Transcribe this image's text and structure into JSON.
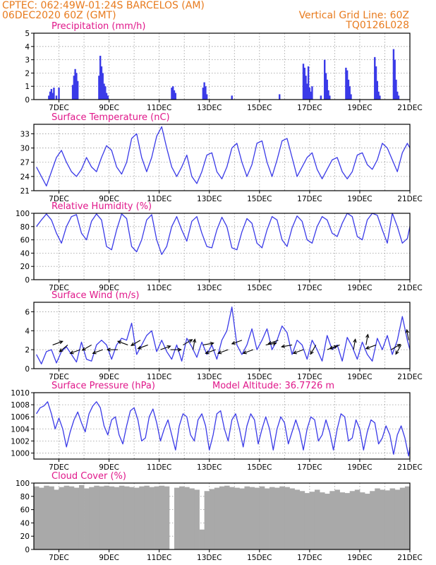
{
  "header": {
    "line1_left": "CPTEC:   062:49W-01:24S  BARCELOS (AM)",
    "line2_left": "06DEC2020 60Z (GMT)",
    "line2_right": "Vertical Grid Line: 60Z",
    "line3_right": "TQ0126L028"
  },
  "colors": {
    "header": "#e87b1e",
    "title": "#e0178a",
    "line": "#3a3ae8",
    "cloud": "#a9a9a9",
    "arrow": "#000000"
  },
  "chart_data": [
    {
      "type": "bar",
      "title": "Precipitation (mm/h)",
      "ylim": [
        0,
        5
      ],
      "yticks": [
        0,
        1,
        2,
        3,
        4,
        5
      ],
      "xticks": [
        "7DEC",
        "9DEC",
        "11DEC",
        "13DEC",
        "15DEC",
        "17DEC",
        "19DEC",
        "21DEC"
      ],
      "x_unit": "day of December 2020 (fractional)",
      "x": [
        6.6,
        6.65,
        6.7,
        6.75,
        6.8,
        6.9,
        7.0,
        7.55,
        7.6,
        7.65,
        7.7,
        7.75,
        8.6,
        8.65,
        8.7,
        8.75,
        8.8,
        8.85,
        8.9,
        8.95,
        11.5,
        11.55,
        11.6,
        11.65,
        12.75,
        12.8,
        12.85,
        12.9,
        13.9,
        15.8,
        16.75,
        16.8,
        16.85,
        16.9,
        16.95,
        17.0,
        17.05,
        17.1,
        17.45,
        17.6,
        17.65,
        17.7,
        17.75,
        17.8,
        18.45,
        18.5,
        18.55,
        18.6,
        18.65,
        19.6,
        19.65,
        19.7,
        19.75,
        19.8,
        20.35,
        20.4,
        20.45,
        20.5,
        20.55
      ],
      "values": [
        0.3,
        0.6,
        0.8,
        0.5,
        0.9,
        0.3,
        0.9,
        1.1,
        1.8,
        2.3,
        2.0,
        1.4,
        1.8,
        3.3,
        2.5,
        2.0,
        1.2,
        1.0,
        0.5,
        0.3,
        0.9,
        1.0,
        0.7,
        0.5,
        0.9,
        1.3,
        1.0,
        0.4,
        0.3,
        0.4,
        2.7,
        2.4,
        1.8,
        1.2,
        2.5,
        0.9,
        0.6,
        1.0,
        0.3,
        3.0,
        2.0,
        1.5,
        0.7,
        0.3,
        2.4,
        2.2,
        1.5,
        1.0,
        0.4,
        3.2,
        2.5,
        1.4,
        0.6,
        0.3,
        3.8,
        3.0,
        1.5,
        0.6,
        0.3
      ]
    },
    {
      "type": "line",
      "title": "Surface Temperature (nC)",
      "ylim": [
        21,
        35
      ],
      "yticks": [
        21,
        24,
        27,
        30,
        33
      ],
      "xticks": [
        "7DEC",
        "9DEC",
        "11DEC",
        "13DEC",
        "15DEC",
        "17DEC",
        "19DEC",
        "21DEC"
      ],
      "x": [
        6.1,
        6.3,
        6.5,
        6.7,
        6.9,
        7.1,
        7.3,
        7.5,
        7.7,
        7.9,
        8.1,
        8.3,
        8.5,
        8.7,
        8.9,
        9.1,
        9.3,
        9.5,
        9.7,
        9.9,
        10.1,
        10.3,
        10.5,
        10.7,
        10.9,
        11.1,
        11.3,
        11.5,
        11.7,
        11.9,
        12.1,
        12.3,
        12.5,
        12.7,
        12.9,
        13.1,
        13.3,
        13.5,
        13.7,
        13.9,
        14.1,
        14.3,
        14.5,
        14.7,
        14.9,
        15.1,
        15.3,
        15.5,
        15.7,
        15.9,
        16.1,
        16.3,
        16.5,
        16.7,
        16.9,
        17.1,
        17.3,
        17.5,
        17.7,
        17.9,
        18.1,
        18.3,
        18.5,
        18.7,
        18.9,
        19.1,
        19.3,
        19.5,
        19.7,
        19.9,
        20.1,
        20.3,
        20.5,
        20.7,
        20.9,
        21.0
      ],
      "values": [
        26.0,
        24.0,
        22.0,
        25.0,
        28.0,
        29.5,
        27.0,
        25.0,
        24.0,
        25.5,
        28.0,
        26.0,
        25.0,
        28.0,
        30.5,
        29.5,
        26.0,
        24.5,
        27.0,
        32.0,
        33.0,
        28.0,
        25.0,
        28.0,
        32.5,
        34.5,
        30.0,
        26.0,
        24.0,
        26.0,
        28.5,
        24.0,
        22.5,
        25.0,
        28.5,
        29.0,
        25.0,
        23.5,
        26.0,
        30.0,
        31.0,
        27.0,
        24.0,
        26.5,
        31.0,
        31.5,
        27.0,
        24.0,
        27.5,
        31.5,
        32.0,
        28.0,
        24.0,
        26.0,
        28.0,
        29.0,
        25.5,
        23.5,
        25.5,
        27.5,
        28.0,
        25.0,
        23.5,
        25.0,
        28.5,
        29.0,
        26.5,
        25.5,
        27.5,
        31.0,
        30.0,
        27.5,
        25.0,
        29.0,
        31.0,
        30.0
      ]
    },
    {
      "type": "line",
      "title": "Relative Humidity (%)",
      "ylim": [
        0,
        100
      ],
      "yticks": [
        0,
        20,
        40,
        60,
        80,
        100
      ],
      "xticks": [
        "7DEC",
        "9DEC",
        "11DEC",
        "13DEC",
        "15DEC",
        "17DEC",
        "19DEC",
        "21DEC"
      ],
      "x": [
        6.1,
        6.3,
        6.5,
        6.7,
        6.9,
        7.1,
        7.3,
        7.5,
        7.7,
        7.9,
        8.1,
        8.3,
        8.5,
        8.7,
        8.9,
        9.1,
        9.3,
        9.5,
        9.7,
        9.9,
        10.1,
        10.3,
        10.5,
        10.7,
        10.9,
        11.1,
        11.3,
        11.5,
        11.7,
        11.9,
        12.1,
        12.3,
        12.5,
        12.7,
        12.9,
        13.1,
        13.3,
        13.5,
        13.7,
        13.9,
        14.1,
        14.3,
        14.5,
        14.7,
        14.9,
        15.1,
        15.3,
        15.5,
        15.7,
        15.9,
        16.1,
        16.3,
        16.5,
        16.7,
        16.9,
        17.1,
        17.3,
        17.5,
        17.7,
        17.9,
        18.1,
        18.3,
        18.5,
        18.7,
        18.9,
        19.1,
        19.3,
        19.5,
        19.7,
        19.9,
        20.1,
        20.3,
        20.5,
        20.7,
        20.9,
        21.0
      ],
      "values": [
        80,
        90,
        99,
        90,
        70,
        55,
        80,
        95,
        98,
        70,
        60,
        88,
        99,
        90,
        50,
        45,
        75,
        99,
        92,
        50,
        42,
        60,
        90,
        98,
        60,
        38,
        50,
        80,
        95,
        75,
        58,
        88,
        95,
        70,
        50,
        48,
        75,
        94,
        80,
        48,
        45,
        72,
        92,
        85,
        55,
        48,
        75,
        95,
        90,
        60,
        50,
        78,
        96,
        88,
        60,
        55,
        80,
        95,
        90,
        70,
        65,
        85,
        100,
        95,
        65,
        60,
        90,
        100,
        97,
        75,
        55,
        100,
        80,
        55,
        62,
        80
      ]
    },
    {
      "type": "line",
      "title": "Surface Wind (m/s)",
      "ylim": [
        0,
        7
      ],
      "yticks": [
        0,
        2,
        4,
        6
      ],
      "xticks": [
        "7DEC",
        "9DEC",
        "11DEC",
        "13DEC",
        "15DEC",
        "17DEC",
        "19DEC",
        "21DEC"
      ],
      "x": [
        6.1,
        6.3,
        6.5,
        6.7,
        6.9,
        7.1,
        7.3,
        7.5,
        7.7,
        7.9,
        8.1,
        8.3,
        8.5,
        8.7,
        8.9,
        9.1,
        9.3,
        9.5,
        9.7,
        9.9,
        10.1,
        10.3,
        10.5,
        10.7,
        10.9,
        11.1,
        11.3,
        11.5,
        11.7,
        11.9,
        12.1,
        12.3,
        12.5,
        12.7,
        12.9,
        13.1,
        13.3,
        13.5,
        13.7,
        13.9,
        14.1,
        14.3,
        14.5,
        14.7,
        14.9,
        15.1,
        15.3,
        15.5,
        15.7,
        15.9,
        16.1,
        16.3,
        16.5,
        16.7,
        16.9,
        17.1,
        17.3,
        17.5,
        17.7,
        17.9,
        18.1,
        18.3,
        18.5,
        18.7,
        18.9,
        19.1,
        19.3,
        19.5,
        19.7,
        19.9,
        20.1,
        20.3,
        20.5,
        20.7,
        20.9,
        21.0
      ],
      "values": [
        1.5,
        0.5,
        1.8,
        2.0,
        0.6,
        1.8,
        2.3,
        1.5,
        0.7,
        2.8,
        1.0,
        0.8,
        2.5,
        3.0,
        2.5,
        1.0,
        2.5,
        3.2,
        3.0,
        4.8,
        1.5,
        2.5,
        3.5,
        4.0,
        1.8,
        3.0,
        1.8,
        1.0,
        2.5,
        0.8,
        3.2,
        2.3,
        1.2,
        2.8,
        1.5,
        2.5,
        1.0,
        3.0,
        4.0,
        6.5,
        2.5,
        1.5,
        2.5,
        4.2,
        2.0,
        3.0,
        4.2,
        2.0,
        3.0,
        4.5,
        3.8,
        1.5,
        3.0,
        2.5,
        1.0,
        3.0,
        2.0,
        0.8,
        3.5,
        2.0,
        2.5,
        0.8,
        3.3,
        2.3,
        1.0,
        2.8,
        1.5,
        0.8,
        3.2,
        2.0,
        3.5,
        1.5,
        3.0,
        5.5,
        3.0,
        2.0
      ],
      "arrows_x": [
        6.75,
        7.35,
        7.85,
        8.3,
        8.75,
        9.35,
        9.75,
        10.25,
        10.55,
        11.05,
        11.45,
        11.95,
        12.35,
        12.75,
        13.25,
        13.75,
        14.3,
        14.75,
        15.25,
        15.75,
        16.3,
        16.75,
        17.25,
        17.7,
        18.2,
        18.75,
        19.25,
        19.65,
        20.25,
        20.65,
        20.95
      ],
      "arrows_speed": [
        2.5,
        2.5,
        2.0,
        2.5,
        2.0,
        2.0,
        2.5,
        3.0,
        2.5,
        2.0,
        2.0,
        2.5,
        2.0,
        2.5,
        2.0,
        2.0,
        3.0,
        2.0,
        2.5,
        3.0,
        2.5,
        2.0,
        2.5,
        2.0,
        2.5,
        2.0,
        2.5,
        2.5,
        2.0,
        2.5,
        3.0
      ],
      "arrows_dir_deg": [
        20,
        220,
        200,
        210,
        200,
        180,
        160,
        210,
        200,
        20,
        0,
        30,
        80,
        10,
        200,
        200,
        200,
        200,
        10,
        200,
        190,
        200,
        240,
        20,
        200,
        80,
        80,
        200,
        30,
        240,
        100
      ]
    },
    {
      "type": "line",
      "title": "Surface Pressure (hPa)",
      "annotation": "Model Altitude: 36.7726 m",
      "ylim": [
        999,
        1010
      ],
      "yticks": [
        1000,
        1002,
        1004,
        1006,
        1008,
        1010
      ],
      "xticks": [
        "7DEC",
        "9DEC",
        "11DEC",
        "13DEC",
        "15DEC",
        "17DEC",
        "19DEC",
        "21DEC"
      ],
      "x": [
        6.1,
        6.25,
        6.4,
        6.55,
        6.7,
        6.85,
        7.0,
        7.15,
        7.3,
        7.45,
        7.6,
        7.75,
        7.9,
        8.05,
        8.2,
        8.35,
        8.5,
        8.65,
        8.8,
        8.95,
        9.1,
        9.25,
        9.4,
        9.55,
        9.7,
        9.85,
        10.0,
        10.15,
        10.3,
        10.45,
        10.6,
        10.75,
        10.9,
        11.05,
        11.2,
        11.35,
        11.5,
        11.65,
        11.8,
        11.95,
        12.1,
        12.25,
        12.4,
        12.55,
        12.7,
        12.85,
        13.0,
        13.15,
        13.3,
        13.45,
        13.6,
        13.75,
        13.9,
        14.05,
        14.2,
        14.35,
        14.5,
        14.65,
        14.8,
        14.95,
        15.1,
        15.25,
        15.4,
        15.55,
        15.7,
        15.85,
        16.0,
        16.15,
        16.3,
        16.45,
        16.6,
        16.75,
        16.9,
        17.05,
        17.2,
        17.35,
        17.5,
        17.65,
        17.8,
        17.95,
        18.1,
        18.25,
        18.4,
        18.55,
        18.7,
        18.85,
        19.0,
        19.15,
        19.3,
        19.45,
        19.6,
        19.75,
        19.9,
        20.05,
        20.2,
        20.35,
        20.5,
        20.65,
        20.8,
        20.95,
        21.0
      ],
      "values": [
        1006.5,
        1007.5,
        1007.8,
        1008.5,
        1006.5,
        1004.0,
        1005.8,
        1004.0,
        1001.0,
        1003.5,
        1005.5,
        1006.8,
        1005.0,
        1003.5,
        1006.5,
        1007.8,
        1008.5,
        1007.5,
        1004.5,
        1003.0,
        1005.5,
        1006.0,
        1003.0,
        1001.5,
        1004.5,
        1007.0,
        1007.5,
        1005.5,
        1002.0,
        1002.5,
        1006.0,
        1007.3,
        1005.0,
        1002.0,
        1004.0,
        1005.5,
        1003.0,
        1000.5,
        1004.5,
        1006.5,
        1006.0,
        1003.0,
        1002.0,
        1005.5,
        1006.5,
        1004.5,
        1000.5,
        1003.0,
        1006.5,
        1007.0,
        1004.0,
        1002.0,
        1005.5,
        1006.5,
        1004.0,
        1001.0,
        1004.5,
        1006.5,
        1005.5,
        1001.5,
        1004.0,
        1006.0,
        1004.0,
        1000.5,
        1004.0,
        1006.0,
        1005.0,
        1001.5,
        1003.5,
        1005.5,
        1003.5,
        1000.5,
        1004.0,
        1006.0,
        1005.5,
        1002.0,
        1003.0,
        1005.5,
        1003.5,
        1000.5,
        1004.0,
        1006.5,
        1006.0,
        1002.0,
        1002.5,
        1005.5,
        1004.0,
        1000.5,
        1003.5,
        1005.5,
        1005.0,
        1001.5,
        1002.5,
        1004.5,
        1003.0,
        999.8,
        1003.0,
        1004.5,
        1002.5,
        999.5,
        1001.0
      ]
    },
    {
      "type": "bar",
      "title": "Cloud Cover (%)",
      "ylim": [
        0,
        100
      ],
      "yticks": [
        0,
        20,
        40,
        60,
        80,
        100
      ],
      "xticks": [
        "7DEC",
        "9DEC",
        "11DEC",
        "13DEC",
        "15DEC",
        "17DEC",
        "19DEC",
        "21DEC"
      ],
      "x": [
        6.1,
        6.3,
        6.5,
        6.7,
        6.9,
        7.1,
        7.3,
        7.5,
        7.7,
        7.9,
        8.1,
        8.3,
        8.5,
        8.7,
        8.9,
        9.1,
        9.3,
        9.5,
        9.7,
        9.9,
        10.1,
        10.3,
        10.5,
        10.7,
        10.9,
        11.1,
        11.3,
        11.5,
        11.7,
        11.9,
        12.1,
        12.3,
        12.5,
        12.7,
        12.9,
        13.1,
        13.3,
        13.5,
        13.7,
        13.9,
        14.1,
        14.3,
        14.5,
        14.7,
        14.9,
        15.1,
        15.3,
        15.5,
        15.7,
        15.9,
        16.1,
        16.3,
        16.5,
        16.7,
        16.9,
        17.1,
        17.3,
        17.5,
        17.7,
        17.9,
        18.1,
        18.3,
        18.5,
        18.7,
        18.9,
        19.1,
        19.3,
        19.5,
        19.7,
        19.9,
        20.1,
        20.3,
        20.5,
        20.7,
        20.9
      ],
      "values": [
        95,
        93,
        96,
        95,
        90,
        94,
        96,
        95,
        93,
        97,
        92,
        94,
        96,
        95,
        96,
        95,
        94,
        96,
        95,
        94,
        93,
        95,
        96,
        94,
        95,
        96,
        95,
        0,
        93,
        95,
        94,
        92,
        90,
        30,
        88,
        91,
        93,
        95,
        96,
        94,
        93,
        92,
        95,
        94,
        93,
        95,
        92,
        94,
        93,
        95,
        94,
        92,
        90,
        88,
        85,
        87,
        90,
        86,
        84,
        88,
        90,
        86,
        85,
        88,
        90,
        86,
        84,
        88,
        92,
        90,
        89,
        92,
        90,
        93,
        95
      ]
    }
  ]
}
